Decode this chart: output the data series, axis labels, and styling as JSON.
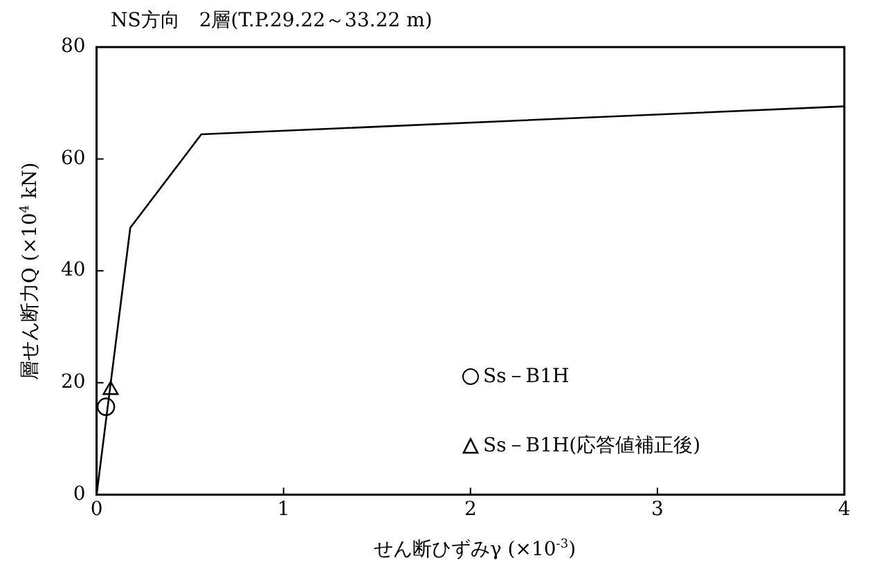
{
  "chart_data": {
    "type": "line",
    "title": "NS方向　2層(T.P.29.22～33.22 m)",
    "xlabel": "せん断ひずみγ (×10$^{-3}$)",
    "ylabel": "層せん断力Q (×10$^{4}$ kN)",
    "xlim": [
      0,
      4
    ],
    "xticks": [
      0,
      1,
      2,
      3,
      4
    ],
    "ylim": [
      0,
      80
    ],
    "yticks": [
      0,
      20,
      40,
      60,
      80
    ],
    "grid": false,
    "legend": "bottom right",
    "line_style": "solid",
    "series": [
      {
        "type": "line",
        "color": "#000000",
        "marker": "none",
        "x": [
          0,
          0.18,
          0.56,
          4
        ],
        "values": [
          0,
          47.7,
          64.4,
          69.4
        ]
      },
      {
        "type": "scatter",
        "name": "Ss－B1H",
        "color": "#000000",
        "marker": "circle",
        "x": [
          0.05
        ],
        "values": [
          15.7
        ]
      },
      {
        "type": "scatter",
        "name": "Ss－B1H(応答値補正後)",
        "color": "#000000",
        "marker": "triangle",
        "x": [
          0.075
        ],
        "values": [
          18.7
        ]
      }
    ]
  }
}
